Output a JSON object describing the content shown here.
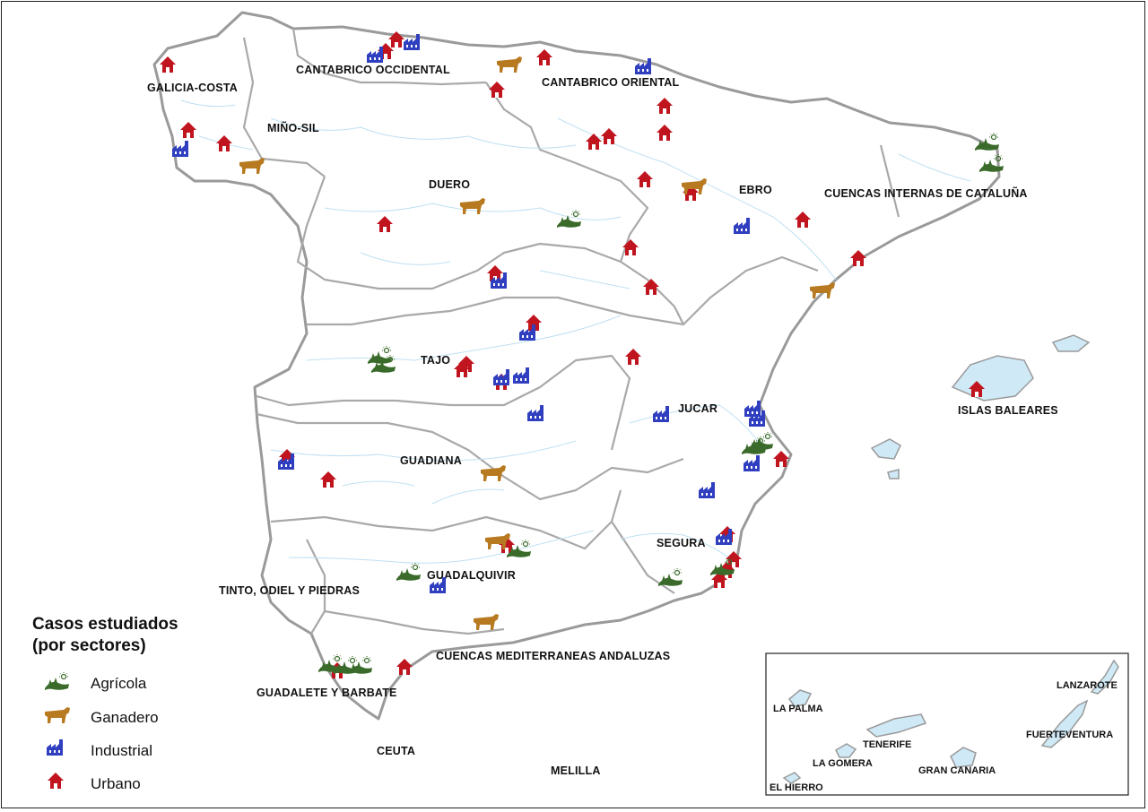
{
  "legend": {
    "title_line1": "Casos estudiados",
    "title_line2": "(por sectores)",
    "items": [
      {
        "key": "agricola",
        "label": "Agrícola"
      },
      {
        "key": "ganadero",
        "label": "Ganadero"
      },
      {
        "key": "industrial",
        "label": "Industrial"
      },
      {
        "key": "urbano",
        "label": "Urbano"
      }
    ]
  },
  "colors": {
    "agricola": "#3a6b2a",
    "ganadero": "#b87a20",
    "industrial": "#2f3fbf",
    "urbano": "#c0141e",
    "border": "#9a9a9a",
    "river": "#bfe0f2"
  },
  "basins": {
    "galicia_costa": "GALICIA-COSTA",
    "mino_sil": "MIÑO-SIL",
    "cantabrico_occidental": "CANTABRICO OCCIDENTAL",
    "cantabrico_oriental": "CANTABRICO ORIENTAL",
    "duero": "DUERO",
    "ebro": "EBRO",
    "cuencas_internas_cataluna": "CUENCAS INTERNAS DE CATALUÑA",
    "tajo": "TAJO",
    "jucar": "JUCAR",
    "islas_baleares": "ISLAS BALEARES",
    "guadiana": "GUADIANA",
    "segura": "SEGURA",
    "guadalquivir": "GUADALQUIVIR",
    "tinto_odiel_piedras": "TINTO, ODIEL Y PIEDRAS",
    "cuencas_mediterraneas_andaluzas": "CUENCAS MEDITERRANEAS ANDALUZAS",
    "guadalete_barbate": "GUADALETE Y BARBATE",
    "ceuta": "CEUTA",
    "melilla": "MELILLA"
  },
  "canarias": {
    "la_palma": "LA PALMA",
    "lanzarote": "LANZAROTE",
    "tenerife": "TENERIFE",
    "fuerteventura": "FUERTEVENTURA",
    "la_gomera": "LA GOMERA",
    "gran_canaria": "GRAN CANARIA",
    "el_hierro": "EL HIERRO"
  }
}
